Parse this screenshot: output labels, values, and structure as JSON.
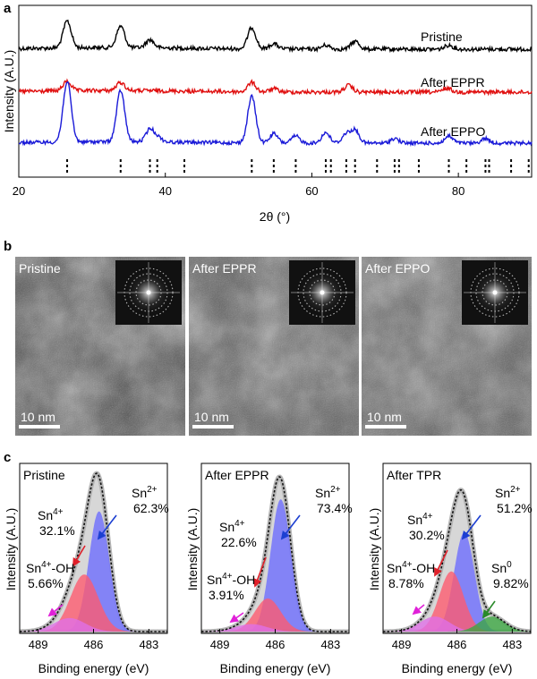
{
  "panels": {
    "a": "a",
    "b": "b",
    "c": "c"
  },
  "chart_data": [
    {
      "id": "a",
      "type": "line",
      "xlabel": "2θ (°)",
      "ylabel": "Intensity (A.U.)",
      "xlim": [
        20,
        90
      ],
      "xticks": [
        20,
        40,
        60,
        80
      ],
      "series": [
        {
          "name": "Pristine",
          "color": "#000000",
          "peaks": [
            [
              26.6,
              1.0
            ],
            [
              33.9,
              0.8
            ],
            [
              37.9,
              0.3
            ],
            [
              51.8,
              0.8
            ],
            [
              54.8,
              0.2
            ],
            [
              61.9,
              0.15
            ],
            [
              65.9,
              0.3
            ],
            [
              78.7,
              0.15
            ]
          ]
        },
        {
          "name": "After EPPR",
          "color": "#e01010",
          "peaks": [
            [
              26.6,
              0.35
            ],
            [
              33.9,
              0.3
            ],
            [
              51.8,
              0.35
            ],
            [
              54.8,
              0.12
            ],
            [
              65.0,
              0.25
            ],
            [
              78.5,
              0.15
            ]
          ]
        },
        {
          "name": "After EPPO",
          "color": "#1a1ad8",
          "peaks": [
            [
              26.6,
              2.6
            ],
            [
              33.9,
              2.2
            ],
            [
              37.9,
              0.55
            ],
            [
              39.0,
              0.2
            ],
            [
              51.8,
              2.0
            ],
            [
              54.8,
              0.4
            ],
            [
              57.8,
              0.3
            ],
            [
              61.9,
              0.45
            ],
            [
              64.7,
              0.4
            ],
            [
              65.9,
              0.55
            ],
            [
              71.3,
              0.2
            ],
            [
              78.7,
              0.3
            ],
            [
              83.7,
              0.2
            ]
          ]
        }
      ],
      "reference_lines": [
        26.6,
        33.9,
        37.9,
        38.9,
        42.6,
        51.8,
        54.8,
        57.8,
        61.9,
        62.6,
        64.7,
        65.9,
        68.9,
        71.3,
        71.9,
        74.6,
        78.7,
        81.1,
        83.7,
        84.2,
        87.2,
        89.6
      ]
    },
    {
      "id": "c1",
      "type": "area",
      "title": "Pristine",
      "xlabel": "Binding energy (eV)",
      "ylabel": "Intensity (A.U.)",
      "xlim": [
        490,
        482
      ],
      "xticks": [
        489,
        486,
        483
      ],
      "components": [
        {
          "name": "Sn2+",
          "center": 485.7,
          "width": 0.55,
          "height": 0.8,
          "color": "#6b6bff"
        },
        {
          "name": "Sn4+",
          "center": 486.5,
          "width": 0.75,
          "height": 0.38,
          "color": "#ff5a6e"
        },
        {
          "name": "Sn4+-OH",
          "center": 487.3,
          "width": 0.85,
          "height": 0.09,
          "color": "#e070e8"
        }
      ],
      "labels": [
        {
          "species": "Sn",
          "sup": "2+",
          "pct": "62.3%",
          "color": "#1c3fd1"
        },
        {
          "species": "Sn",
          "sup": "4+",
          "pct": "32.1%",
          "color": "#e0202a"
        },
        {
          "species": "Sn",
          "sup": "4+",
          "suffix": "-OH",
          "pct": "5.66%",
          "color": "#e020d8"
        }
      ]
    },
    {
      "id": "c2",
      "type": "area",
      "title": "After EPPR",
      "xlabel": "Binding energy (eV)",
      "ylabel": "Intensity (A.U.)",
      "xlim": [
        490,
        482
      ],
      "xticks": [
        489,
        486,
        483
      ],
      "components": [
        {
          "name": "Sn2+",
          "center": 485.7,
          "width": 0.55,
          "height": 0.88,
          "color": "#6b6bff"
        },
        {
          "name": "Sn4+",
          "center": 486.4,
          "width": 0.7,
          "height": 0.22,
          "color": "#ff5a6e"
        },
        {
          "name": "Sn4+-OH",
          "center": 487.3,
          "width": 0.85,
          "height": 0.05,
          "color": "#e070e8"
        }
      ],
      "labels": [
        {
          "species": "Sn",
          "sup": "2+",
          "pct": "73.4%",
          "color": "#1c3fd1"
        },
        {
          "species": "Sn",
          "sup": "4+",
          "pct": "22.6%",
          "color": "#e0202a"
        },
        {
          "species": "Sn",
          "sup": "4+",
          "suffix": "-OH",
          "pct": "3.91%",
          "color": "#e020d8"
        }
      ]
    },
    {
      "id": "c3",
      "type": "area",
      "title": "After TPR",
      "xlabel": "Binding energy (eV)",
      "ylabel": "Intensity (A.U.)",
      "xlim": [
        490,
        482
      ],
      "xticks": [
        489,
        486,
        483
      ],
      "components": [
        {
          "name": "Sn2+",
          "center": 485.6,
          "width": 0.55,
          "height": 0.66,
          "color": "#6b6bff"
        },
        {
          "name": "Sn4+",
          "center": 486.3,
          "width": 0.65,
          "height": 0.4,
          "color": "#ff5a6e"
        },
        {
          "name": "Sn4+-OH",
          "center": 487.2,
          "width": 0.8,
          "height": 0.1,
          "color": "#e070e8"
        },
        {
          "name": "Sn0",
          "center": 484.1,
          "width": 0.7,
          "height": 0.1,
          "color": "#3aa640"
        }
      ],
      "labels": [
        {
          "species": "Sn",
          "sup": "2+",
          "pct": "51.2%",
          "color": "#1c3fd1"
        },
        {
          "species": "Sn",
          "sup": "4+",
          "pct": "30.2%",
          "color": "#e0202a"
        },
        {
          "species": "Sn",
          "sup": "4+",
          "suffix": "-OH",
          "pct": "8.78%",
          "color": "#e020d8"
        },
        {
          "species": "Sn",
          "sup": "0",
          "pct": "9.82%",
          "color": "#2a8a2a"
        }
      ]
    }
  ],
  "tem": [
    {
      "label": "Pristine",
      "scale": "10 nm",
      "shade": "#4a4a4a"
    },
    {
      "label": "After EPPR",
      "scale": "10 nm",
      "shade": "#555555"
    },
    {
      "label": "After EPPO",
      "scale": "10 nm",
      "shade": "#5a5a5a"
    }
  ]
}
